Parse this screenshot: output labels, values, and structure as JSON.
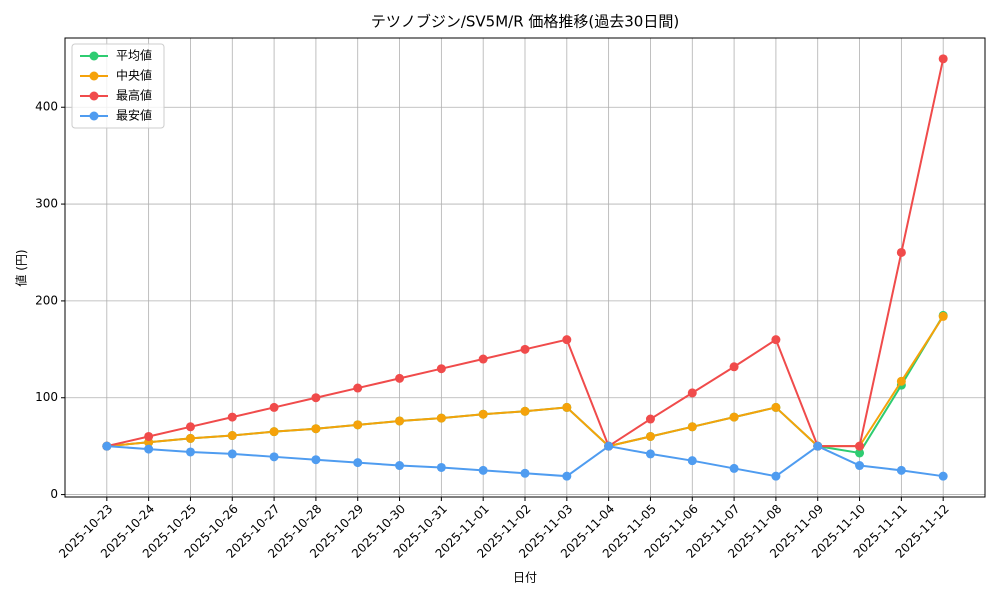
{
  "chart_data": {
    "type": "line",
    "title": "テツノブジン/SV5M/R 価格推移(過去30日間)",
    "x_label": "日付",
    "y_label": "値 (円)",
    "categories": [
      "2025-10-23",
      "2025-10-24",
      "2025-10-25",
      "2025-10-26",
      "2025-10-27",
      "2025-10-28",
      "2025-10-29",
      "2025-10-30",
      "2025-10-31",
      "2025-11-01",
      "2025-11-02",
      "2025-11-03",
      "2025-11-04",
      "2025-11-05",
      "2025-11-06",
      "2025-11-07",
      "2025-11-08",
      "2025-11-09",
      "2025-11-10",
      "2025-11-11",
      "2025-11-12"
    ],
    "series": [
      {
        "name": "平均値",
        "color": "#2ecc71",
        "values": [
          50,
          54,
          58,
          61,
          65,
          68,
          72,
          76,
          79,
          83,
          86,
          90,
          50,
          60,
          70,
          80,
          90,
          50,
          43,
          113,
          185
        ]
      },
      {
        "name": "中央値",
        "color": "#f5a20a",
        "values": [
          50,
          54,
          58,
          61,
          65,
          68,
          72,
          76,
          79,
          83,
          86,
          90,
          50,
          60,
          70,
          80,
          90,
          50,
          50,
          117,
          184
        ]
      },
      {
        "name": "最高値",
        "color": "#f04b4b",
        "values": [
          50,
          60,
          70,
          80,
          90,
          100,
          110,
          120,
          130,
          140,
          150,
          160,
          50,
          78,
          105,
          132,
          160,
          50,
          50,
          250,
          450
        ]
      },
      {
        "name": "最安値",
        "color": "#4f9cf0",
        "values": [
          50,
          47,
          44,
          42,
          39,
          36,
          33,
          30,
          28,
          25,
          22,
          19,
          50,
          42,
          35,
          27,
          19,
          50,
          30,
          25,
          19
        ]
      }
    ],
    "ylim": [
      -2.5,
      471.5
    ],
    "yticks": [
      0,
      100,
      200,
      300,
      400
    ],
    "grid": true,
    "legend": "upper-left"
  }
}
